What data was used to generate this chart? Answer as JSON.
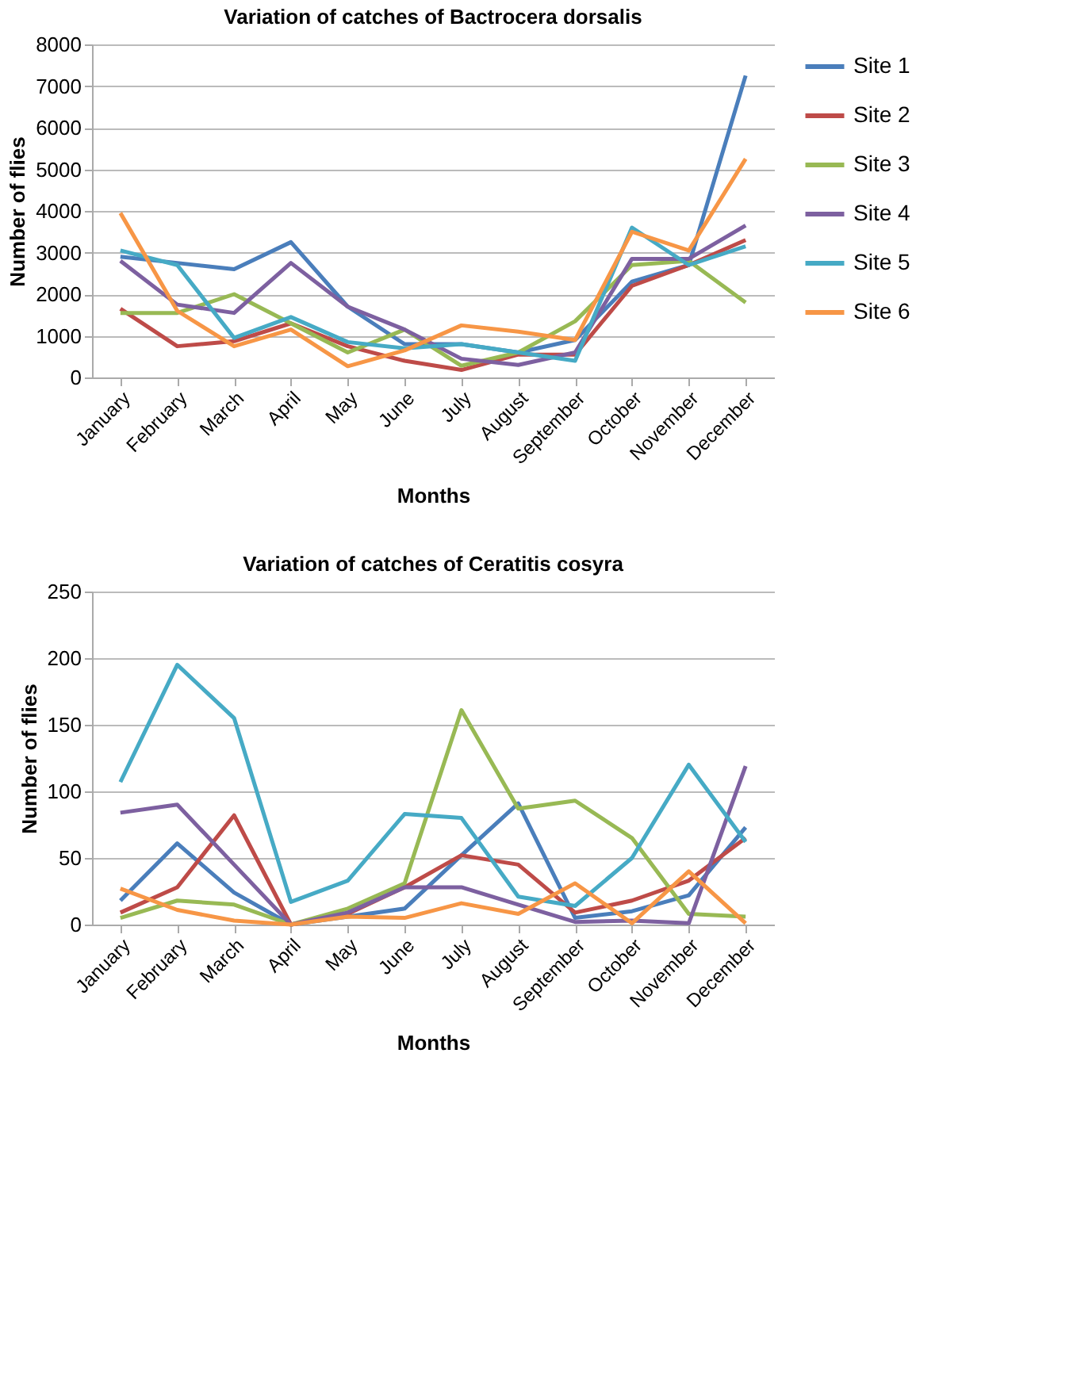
{
  "chart_data": [
    {
      "type": "line",
      "title": "Variation of catches of Bactrocera dorsalis",
      "xlabel": "Months",
      "ylabel": "Number of  flies",
      "categories": [
        "January",
        "February",
        "March",
        "April",
        "May",
        "June",
        "July",
        "August",
        "September",
        "October",
        "November",
        "December"
      ],
      "series": [
        {
          "name": "Site 1",
          "color": "#4a7ebb",
          "values": [
            2900,
            2750,
            2600,
            3250,
            1700,
            800,
            800,
            600,
            900,
            2300,
            2700,
            7250
          ]
        },
        {
          "name": "Site 2",
          "color": "#be4b48",
          "values": [
            1650,
            750,
            870,
            1300,
            750,
            400,
            180,
            550,
            550,
            2200,
            2700,
            3300
          ]
        },
        {
          "name": "Site 3",
          "color": "#98b954",
          "values": [
            1550,
            1550,
            2000,
            1300,
            600,
            1150,
            280,
            600,
            1350,
            2700,
            2800,
            1800
          ]
        },
        {
          "name": "Site 4",
          "color": "#7d60a0",
          "values": [
            2800,
            1750,
            1550,
            2750,
            1700,
            1150,
            450,
            300,
            600,
            2850,
            2850,
            3650
          ]
        },
        {
          "name": "Site 5",
          "color": "#46aac5",
          "values": [
            3050,
            2700,
            950,
            1450,
            850,
            700,
            800,
            600,
            400,
            3600,
            2700,
            3150
          ]
        },
        {
          "name": "Site 6",
          "color": "#f79646",
          "values": [
            3950,
            1600,
            750,
            1150,
            270,
            650,
            1250,
            1100,
            900,
            3500,
            3050,
            5250
          ]
        }
      ],
      "ylim": [
        0,
        8000
      ],
      "yticks": [
        0,
        1000,
        2000,
        3000,
        4000,
        5000,
        6000,
        7000,
        8000
      ],
      "grid": "y",
      "legend": "right",
      "marker": "none",
      "line_style": "solid"
    },
    {
      "type": "line",
      "title": "Variation of catches of Ceratitis cosyra",
      "xlabel": "Months",
      "ylabel": "Number of  flies",
      "categories": [
        "January",
        "February",
        "March",
        "April",
        "May",
        "June",
        "July",
        "August",
        "September",
        "October",
        "November",
        "December"
      ],
      "series": [
        {
          "name": "Site 1",
          "color": "#4a7ebb",
          "values": [
            18,
            61,
            24,
            0,
            6,
            12,
            52,
            91,
            5,
            10,
            22,
            73
          ]
        },
        {
          "name": "Site 2",
          "color": "#be4b48",
          "values": [
            9,
            28,
            82,
            0,
            8,
            28,
            52,
            45,
            9,
            18,
            33,
            65
          ]
        },
        {
          "name": "Site 3",
          "color": "#98b954",
          "values": [
            5,
            18,
            15,
            0,
            12,
            31,
            161,
            87,
            93,
            65,
            8,
            6
          ]
        },
        {
          "name": "Site 4",
          "color": "#7d60a0",
          "values": [
            84,
            90,
            45,
            0,
            9,
            28,
            28,
            15,
            2,
            3,
            1,
            119
          ]
        },
        {
          "name": "Site 5",
          "color": "#46aac5",
          "values": [
            107,
            195,
            155,
            17,
            33,
            83,
            80,
            21,
            14,
            50,
            120,
            62
          ]
        },
        {
          "name": "Site 6",
          "color": "#f79646",
          "values": [
            27,
            11,
            3,
            0,
            6,
            5,
            16,
            8,
            31,
            1,
            40,
            1
          ]
        }
      ],
      "ylim": [
        0,
        250
      ],
      "yticks": [
        0,
        50,
        100,
        150,
        200,
        250
      ],
      "grid": "y",
      "legend": "right",
      "marker": "none",
      "line_style": "solid"
    }
  ]
}
